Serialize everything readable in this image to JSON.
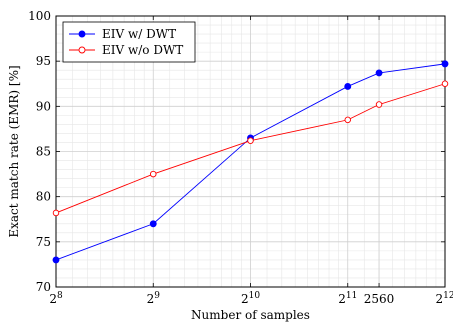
{
  "chart_data": {
    "type": "line",
    "xlabel": "Number of samples",
    "ylabel": "Exact match rate (EMR) [%]",
    "xscale": "log2",
    "xlim": [
      256,
      4096
    ],
    "ylim": [
      70,
      100
    ],
    "x_ticks": [
      {
        "value": 256,
        "base": "2",
        "exp": "8"
      },
      {
        "value": 512,
        "base": "2",
        "exp": "9"
      },
      {
        "value": 1024,
        "base": "2",
        "exp": "10"
      },
      {
        "value": 2048,
        "base": "2",
        "exp": "11"
      },
      {
        "value": 2560,
        "base": "2560",
        "exp": ""
      },
      {
        "value": 4096,
        "base": "2",
        "exp": "12"
      }
    ],
    "y_ticks": [
      "70",
      "75",
      "80",
      "85",
      "90",
      "95",
      "100"
    ],
    "grid": true,
    "legend_position": "top-left",
    "series": [
      {
        "name": "EIV w/ DWT",
        "color": "#0000ff",
        "marker": "filled-circle",
        "x": [
          256,
          512,
          1024,
          2048,
          2560,
          4096
        ],
        "y": [
          73.0,
          77.0,
          86.5,
          92.2,
          93.7,
          94.7
        ]
      },
      {
        "name": "EIV w/o DWT",
        "color": "#ff0000",
        "marker": "open-circle",
        "x": [
          256,
          512,
          1024,
          2048,
          2560,
          4096
        ],
        "y": [
          78.2,
          82.5,
          86.2,
          88.5,
          90.2,
          92.5
        ]
      }
    ]
  }
}
